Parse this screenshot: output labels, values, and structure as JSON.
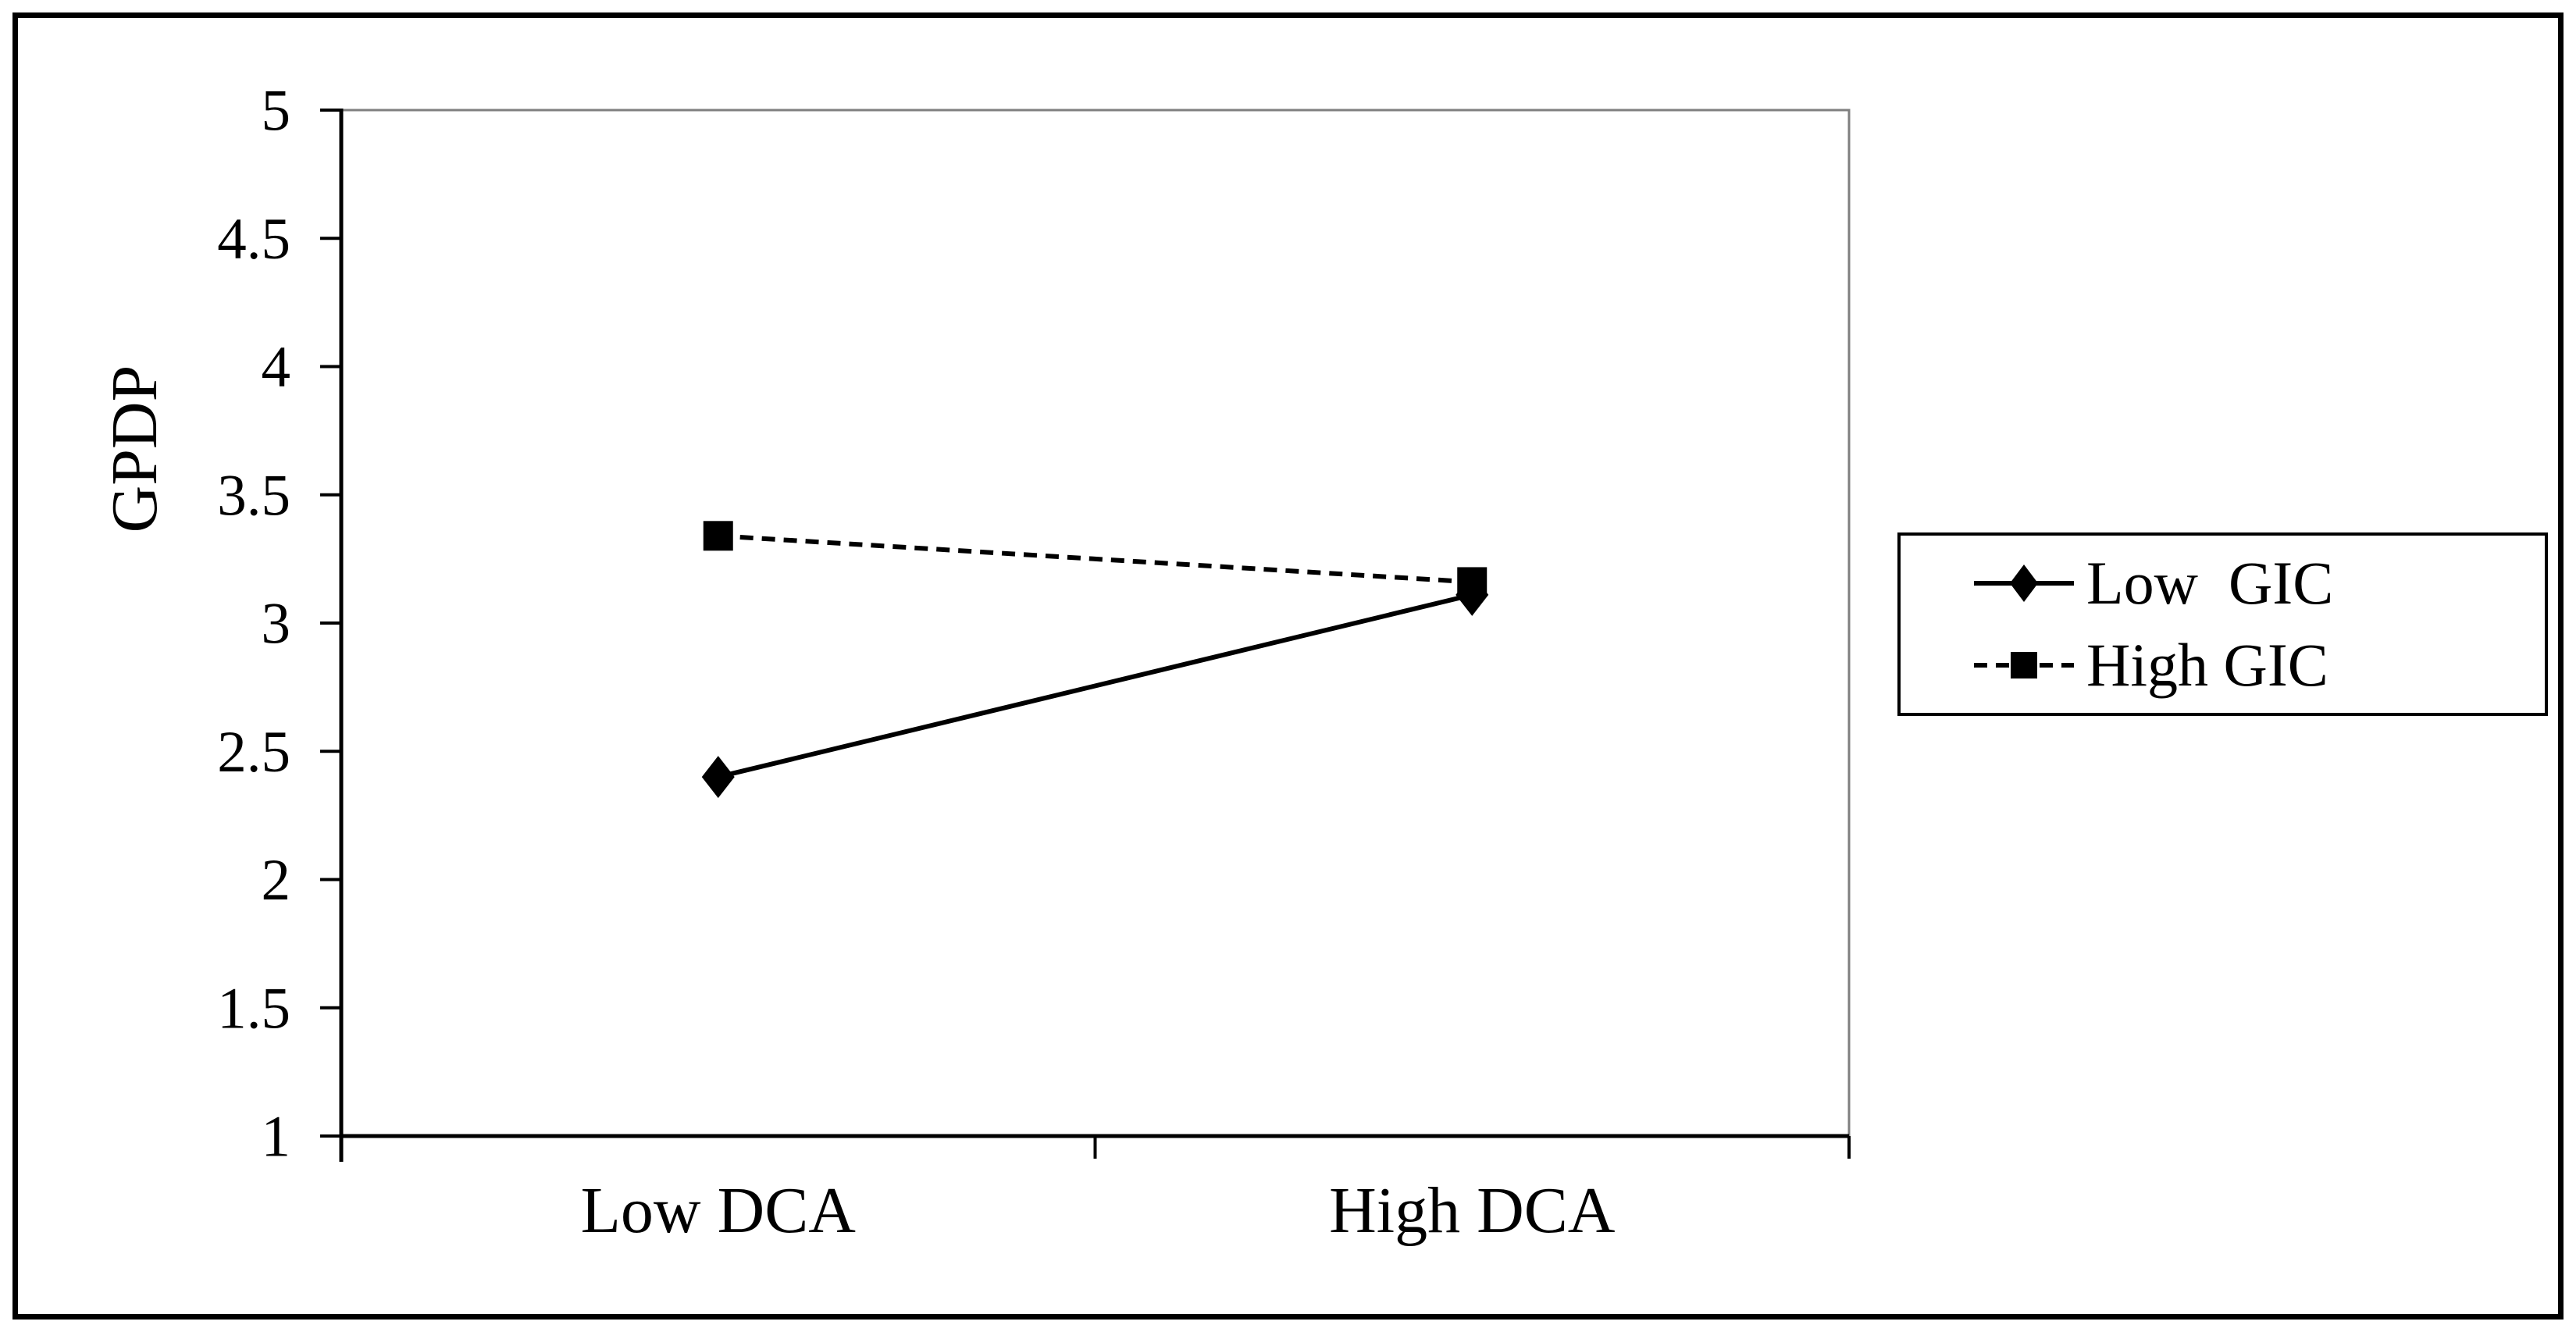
{
  "chart_data": {
    "type": "line",
    "title": "",
    "categories": [
      "Low DCA",
      "High DCA"
    ],
    "series": [
      {
        "key": "low-gic",
        "name": "Low  GIC",
        "values": [
          2.4,
          3.11
        ],
        "line_style": "solid",
        "marker": "diamond"
      },
      {
        "key": "high-gic",
        "name": "High GIC",
        "values": [
          3.34,
          3.16
        ],
        "line_style": "dashed",
        "marker": "square"
      }
    ],
    "xlabel": "",
    "ylabel": "GPDP",
    "ylim": [
      1,
      5
    ],
    "ytick_step": 0.5,
    "ytick_labels": [
      "5",
      "4.5",
      "4",
      "3.5",
      "3",
      "2.5",
      "2",
      "1.5",
      "1"
    ],
    "grid": false,
    "legend_position": "right"
  },
  "colors": {
    "series": "#000000",
    "axis": "#000000",
    "plot_border": "#7f7f7f",
    "background": "#ffffff"
  }
}
